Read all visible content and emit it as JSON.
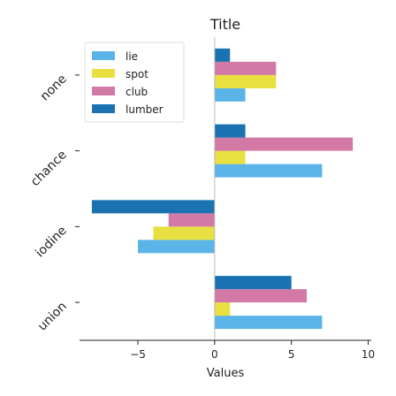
{
  "chart_data": {
    "type": "bar",
    "orientation": "horizontal",
    "title": "Title",
    "xlabel": "Values",
    "ylabel": "",
    "xlim": [
      -8.8,
      10.2
    ],
    "xticks": [
      -5,
      0,
      5,
      10
    ],
    "categories": [
      "union",
      "iodine",
      "chance",
      "none"
    ],
    "series": [
      {
        "name": "lie",
        "color": "#5ab4e8",
        "values": [
          7,
          -5,
          7,
          2
        ]
      },
      {
        "name": "spot",
        "color": "#e8e040",
        "values": [
          1,
          -4,
          2,
          4
        ]
      },
      {
        "name": "club",
        "color": "#d279a6",
        "values": [
          6,
          -3,
          9,
          4
        ]
      },
      {
        "name": "lumber",
        "color": "#1a73b0",
        "values": [
          5,
          -8,
          2,
          1
        ]
      }
    ],
    "legend_position": "top-left",
    "grid": false
  }
}
